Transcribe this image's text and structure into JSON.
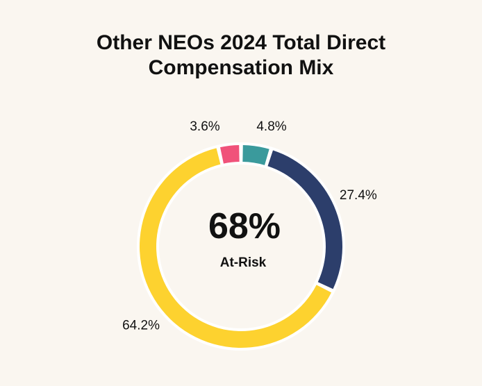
{
  "title_lines": [
    "Other NEOs 2024 Total Direct",
    "Compensation Mix"
  ],
  "center": {
    "value": "68%",
    "label": "At-Risk"
  },
  "chart_data": {
    "type": "pie",
    "title": "Other NEOs 2024 Total Direct Compensation Mix",
    "donut": true,
    "slices": [
      {
        "value": 4.8,
        "label": "4.8%",
        "color": "#3a9a9c"
      },
      {
        "value": 27.4,
        "label": "27.4%",
        "color": "#2c3e6b"
      },
      {
        "value": 64.2,
        "label": "64.2%",
        "color": "#fdd22f"
      },
      {
        "value": 3.6,
        "label": "3.6%",
        "color": "#f0527a"
      }
    ]
  }
}
